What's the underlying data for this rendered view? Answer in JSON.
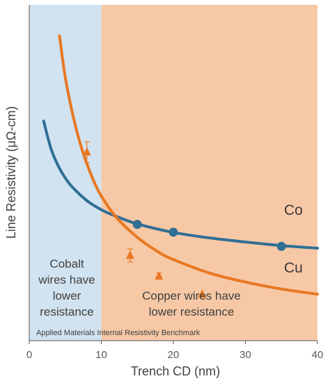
{
  "chart_data": {
    "type": "line",
    "xlabel": "Trench CD (nm)",
    "ylabel": "Line Resistivity (μΩ-cm)",
    "xlim": [
      0,
      40
    ],
    "x_ticks": [
      "0",
      "10",
      "20",
      "30",
      "40"
    ],
    "y_ticks_shown": false,
    "grid": false,
    "series": [
      {
        "name": "Co",
        "color": "#2e6f95",
        "curve": {
          "x": [
            2,
            3,
            4,
            5,
            6,
            8,
            10,
            12,
            15,
            20,
            25,
            30,
            35,
            40
          ],
          "y": [
            8.5,
            7.45,
            6.78,
            6.3,
            5.94,
            5.42,
            5.07,
            4.82,
            4.52,
            4.19,
            3.98,
            3.82,
            3.68,
            3.58
          ]
        },
        "points": {
          "x": [
            15,
            20,
            35
          ],
          "y": [
            4.5,
            4.2,
            3.65
          ]
        }
      },
      {
        "name": "Cu",
        "color": "#e87722",
        "curve": {
          "x": [
            4.2,
            5,
            6,
            7,
            8,
            9,
            10,
            12,
            15,
            18,
            20,
            25,
            30,
            35,
            40
          ],
          "y": [
            11.8,
            10.2,
            8.8,
            7.7,
            6.85,
            6.15,
            5.6,
            4.8,
            4.0,
            3.42,
            3.14,
            2.62,
            2.27,
            2.0,
            1.8
          ]
        },
        "points": {
          "x": [
            8,
            14,
            18,
            24
          ],
          "y": [
            7.3,
            3.3,
            2.5,
            1.8
          ],
          "err": [
            0.4,
            0.25,
            0.12,
            0
          ]
        }
      }
    ],
    "regions": [
      {
        "name": "Cobalt wires have lower resistance",
        "x": [
          0,
          10
        ],
        "color": "#d1e3f1"
      },
      {
        "name": "Copper wires have lower resistance",
        "x": [
          10,
          40
        ],
        "color": "#f7c8a5"
      }
    ]
  },
  "labels": {
    "region_co": [
      "Cobalt",
      "wires have",
      "lower",
      "resistance"
    ],
    "region_cu": [
      "Copper wires have",
      "lower resistance"
    ],
    "footnote": "Applied Materials Internal Resistivity Benchmark",
    "co": "Co",
    "cu": "Cu"
  }
}
